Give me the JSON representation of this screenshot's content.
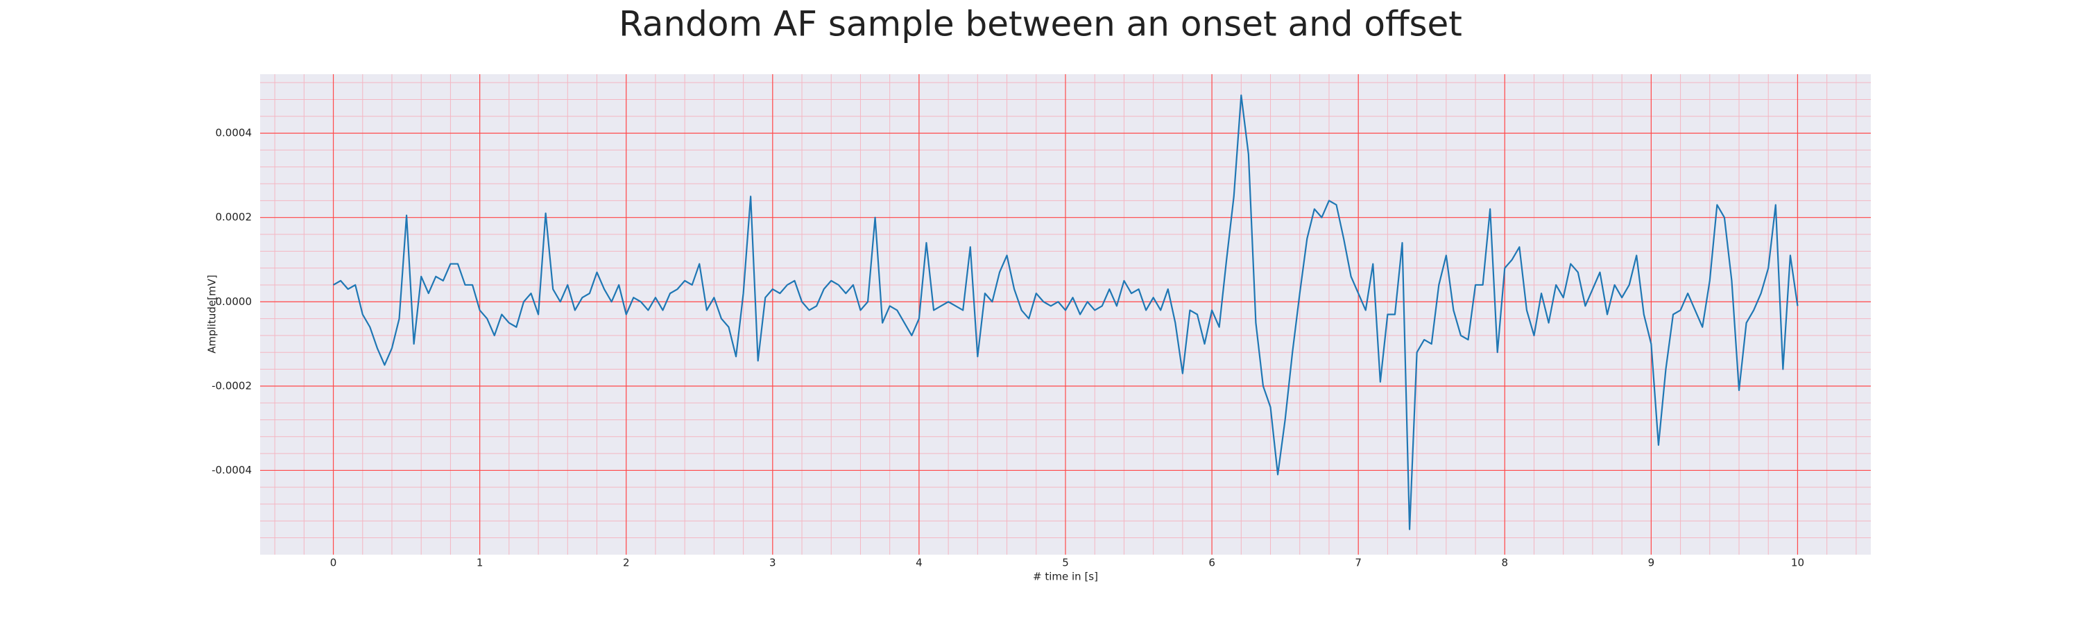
{
  "chart_data": {
    "type": "line",
    "title": "Random AF sample between an onset and offset",
    "xlabel": "# time in [s]",
    "ylabel": "Amplitude[mV]",
    "color": "#1f77b4",
    "grid": true,
    "minor_grid": true,
    "xlim": [
      -0.5,
      10.5
    ],
    "ylim": [
      -0.0006,
      0.00054
    ],
    "xticks": [
      0,
      1,
      2,
      3,
      4,
      5,
      6,
      7,
      8,
      9,
      10
    ],
    "yticks": [
      -0.0004,
      -0.0002,
      {
        "value": 0,
        "label": "0.0000"
      },
      0.0002,
      0.0004
    ],
    "x": [
      0,
      0.05,
      0.1,
      0.15,
      0.2,
      0.25,
      0.3,
      0.35,
      0.4,
      0.45,
      0.5,
      0.55,
      0.6,
      0.65,
      0.7,
      0.75,
      0.8,
      0.85,
      0.9,
      0.95,
      1,
      1.05,
      1.1,
      1.15,
      1.2,
      1.25,
      1.3,
      1.35,
      1.4,
      1.45,
      1.5,
      1.55,
      1.6,
      1.65,
      1.7,
      1.75,
      1.8,
      1.85,
      1.9,
      1.95,
      2,
      2.05,
      2.1,
      2.15,
      2.2,
      2.25,
      2.3,
      2.35,
      2.4,
      2.45,
      2.5,
      2.55,
      2.6,
      2.65,
      2.7,
      2.75,
      2.8,
      2.85,
      2.9,
      2.95,
      3,
      3.05,
      3.1,
      3.15,
      3.2,
      3.25,
      3.3,
      3.35,
      3.4,
      3.45,
      3.5,
      3.55,
      3.6,
      3.65,
      3.7,
      3.75,
      3.8,
      3.85,
      3.9,
      3.95,
      4,
      4.05,
      4.1,
      4.15,
      4.2,
      4.25,
      4.3,
      4.35,
      4.4,
      4.45,
      4.5,
      4.55,
      4.6,
      4.65,
      4.7,
      4.75,
      4.8,
      4.85,
      4.9,
      4.95,
      5,
      5.05,
      5.1,
      5.15,
      5.2,
      5.25,
      5.3,
      5.35,
      5.4,
      5.45,
      5.5,
      5.55,
      5.6,
      5.65,
      5.7,
      5.75,
      5.8,
      5.85,
      5.9,
      5.95,
      6,
      6.05,
      6.1,
      6.15,
      6.2,
      6.25,
      6.3,
      6.35,
      6.4,
      6.45,
      6.5,
      6.55,
      6.6,
      6.65,
      6.7,
      6.75,
      6.8,
      6.85,
      6.9,
      6.95,
      7,
      7.05,
      7.1,
      7.15,
      7.2,
      7.25,
      7.3,
      7.35,
      7.4,
      7.45,
      7.5,
      7.55,
      7.6,
      7.65,
      7.7,
      7.75,
      7.8,
      7.85,
      7.9,
      7.95,
      8,
      8.05,
      8.1,
      8.15,
      8.2,
      8.25,
      8.3,
      8.35,
      8.4,
      8.45,
      8.5,
      8.55,
      8.6,
      8.65,
      8.7,
      8.75,
      8.8,
      8.85,
      8.9,
      8.95,
      9,
      9.05,
      9.1,
      9.15,
      9.2,
      9.25,
      9.3,
      9.35,
      9.4,
      9.45,
      9.5,
      9.55,
      9.6,
      9.65,
      9.7,
      9.75,
      9.8,
      9.85,
      9.9,
      9.95,
      10
    ],
    "values": [
      4e-05,
      5e-05,
      3e-05,
      4e-05,
      -3e-05,
      -6e-05,
      -0.00011,
      -0.00015,
      -0.00011,
      -4e-05,
      0.000205,
      -0.0001,
      6e-05,
      2e-05,
      6e-05,
      5e-05,
      9e-05,
      9e-05,
      4e-05,
      4e-05,
      -2e-05,
      -4e-05,
      -8e-05,
      -3e-05,
      -5e-05,
      -6e-05,
      0,
      2e-05,
      -3e-05,
      0.00021,
      3e-05,
      0,
      4e-05,
      -2e-05,
      1e-05,
      2e-05,
      7e-05,
      3e-05,
      0,
      4e-05,
      -3e-05,
      1e-05,
      0,
      -2e-05,
      1e-05,
      -2e-05,
      2e-05,
      3e-05,
      5e-05,
      4e-05,
      9e-05,
      -2e-05,
      1e-05,
      -4e-05,
      -6e-05,
      -0.00013,
      2e-05,
      0.00025,
      -0.00014,
      1e-05,
      3e-05,
      2e-05,
      4e-05,
      5e-05,
      0,
      -2e-05,
      -1e-05,
      3e-05,
      5e-05,
      4e-05,
      2e-05,
      4e-05,
      -2e-05,
      0,
      0.0002,
      -5e-05,
      -1e-05,
      -2e-05,
      -5e-05,
      -8e-05,
      -4e-05,
      0.00014,
      -2e-05,
      -1e-05,
      0,
      -1e-05,
      -2e-05,
      0.00013,
      -0.00013,
      2e-05,
      0,
      7e-05,
      0.00011,
      3e-05,
      -2e-05,
      -4e-05,
      2e-05,
      0,
      -1e-05,
      0,
      -2e-05,
      1e-05,
      -3e-05,
      0,
      -2e-05,
      -1e-05,
      3e-05,
      -1e-05,
      5e-05,
      2e-05,
      3e-05,
      -2e-05,
      1e-05,
      -2e-05,
      3e-05,
      -5e-05,
      -0.00017,
      -2e-05,
      -3e-05,
      -0.0001,
      -2e-05,
      -6e-05,
      0.0001,
      0.00025,
      0.00049,
      0.00035,
      -5e-05,
      -0.0002,
      -0.00025,
      -0.00041,
      -0.00028,
      -0.00012,
      2e-05,
      0.00015,
      0.00022,
      0.0002,
      0.00024,
      0.00023,
      0.00015,
      6e-05,
      2e-05,
      -2e-05,
      9e-05,
      -0.00019,
      -3e-05,
      -3e-05,
      0.00014,
      -0.00054,
      -0.00012,
      -9e-05,
      -0.0001,
      4e-05,
      0.00011,
      -2e-05,
      -8e-05,
      -9e-05,
      4e-05,
      4e-05,
      0.00022,
      -0.00012,
      8e-05,
      0.0001,
      0.00013,
      -2e-05,
      -8e-05,
      2e-05,
      -5e-05,
      4e-05,
      1e-05,
      9e-05,
      7e-05,
      -1e-05,
      3e-05,
      7e-05,
      -3e-05,
      4e-05,
      1e-05,
      4e-05,
      0.00011,
      -3e-05,
      -0.0001,
      -0.00034,
      -0.00016,
      -3e-05,
      -2e-05,
      2e-05,
      -2e-05,
      -6e-05,
      5e-05,
      0.00023,
      0.0002,
      5e-05,
      -0.00021,
      -5e-05,
      -2e-05,
      2e-05,
      8e-05,
      0.00023,
      -0.00016,
      0.00011,
      -1e-05
    ]
  }
}
